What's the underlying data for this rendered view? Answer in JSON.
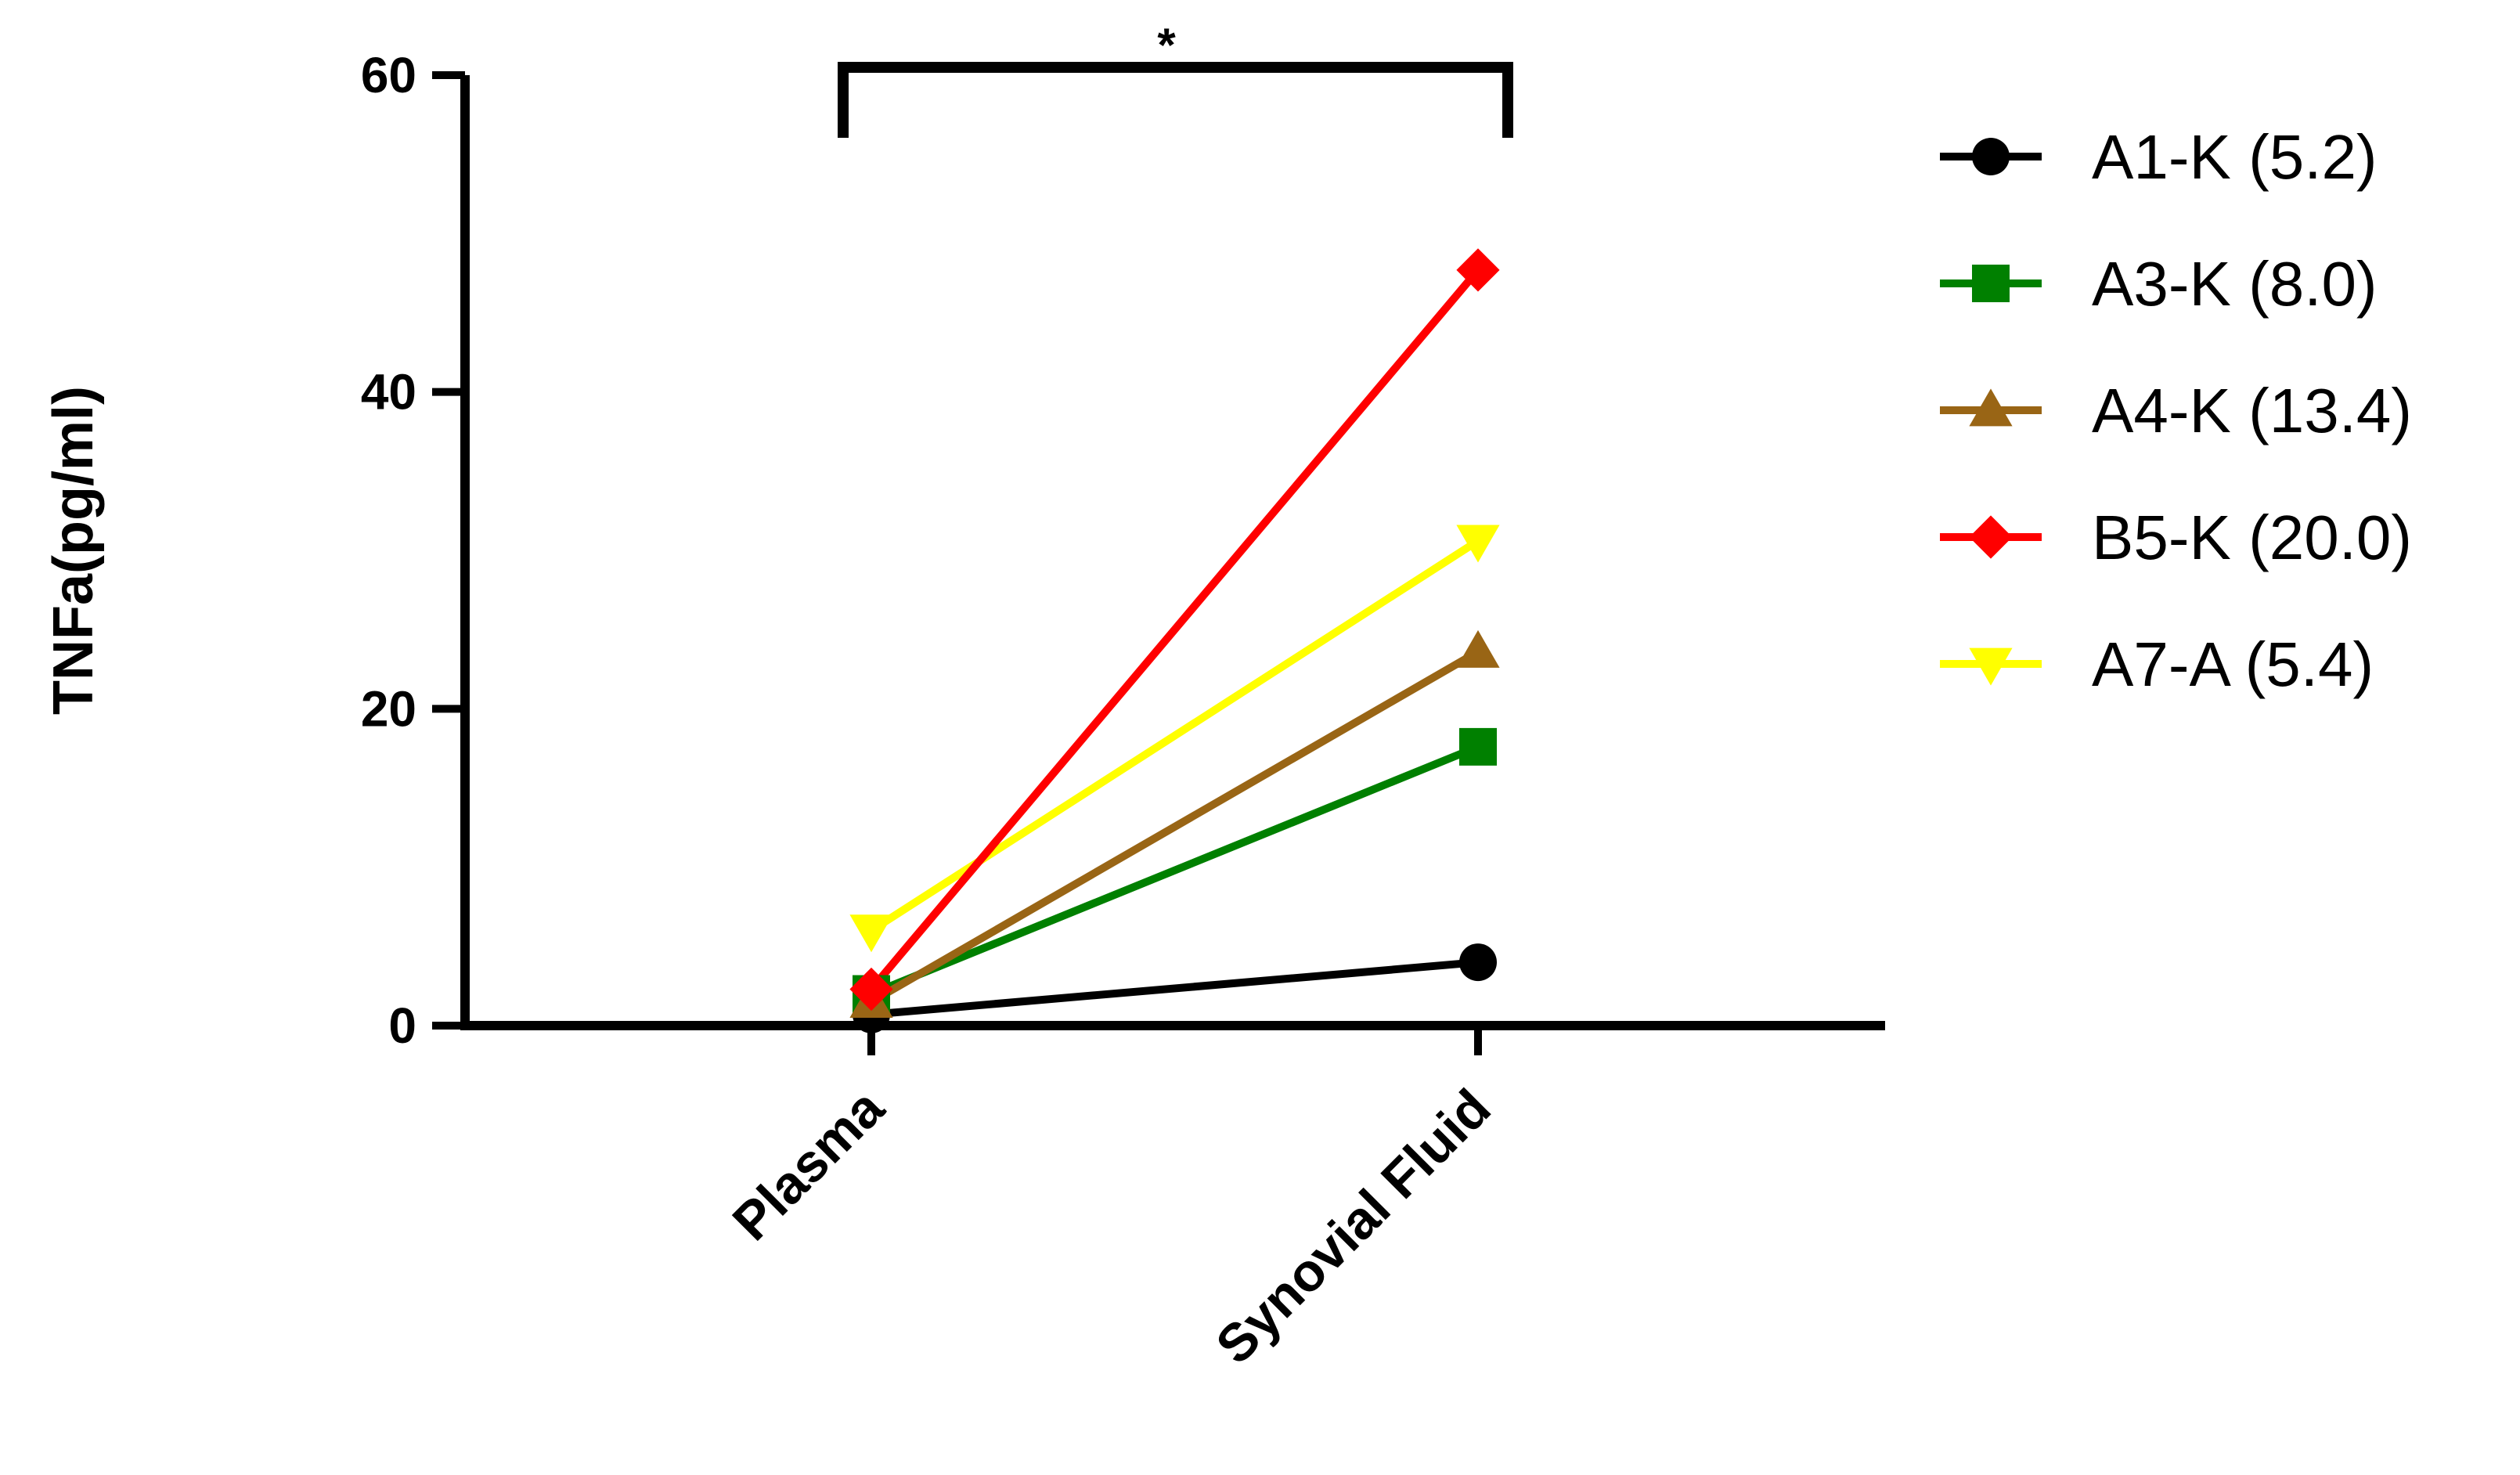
{
  "chart_data": {
    "type": "line",
    "categories": [
      "Plasma",
      "Synovial Fluid"
    ],
    "ylabel": "TNFa(pg/ml)",
    "xlabel": "",
    "ylim": [
      0,
      60
    ],
    "yticks": [
      "0",
      "20",
      "40",
      "60"
    ],
    "grid": false,
    "legend_position": "right",
    "significance": {
      "label": "*",
      "between": [
        "Plasma",
        "Synovial Fluid"
      ]
    },
    "series": [
      {
        "name": "A1-K (5.2)",
        "values": [
          0.7,
          4.0
        ],
        "color": "#000000",
        "marker": "circle"
      },
      {
        "name": "A3-K (8.0)",
        "values": [
          2.0,
          17.6
        ],
        "color": "#008000",
        "marker": "square"
      },
      {
        "name": "A4-K (13.4)",
        "values": [
          1.5,
          23.6
        ],
        "color": "#996515",
        "marker": "triangle-up"
      },
      {
        "name": "B5-K (20.0)",
        "values": [
          2.3,
          47.7
        ],
        "color": "#ff0000",
        "marker": "diamond"
      },
      {
        "name": "A7-A (5.4)",
        "values": [
          6.0,
          30.6
        ],
        "color": "#ffff00",
        "marker": "triangle-down"
      }
    ]
  }
}
